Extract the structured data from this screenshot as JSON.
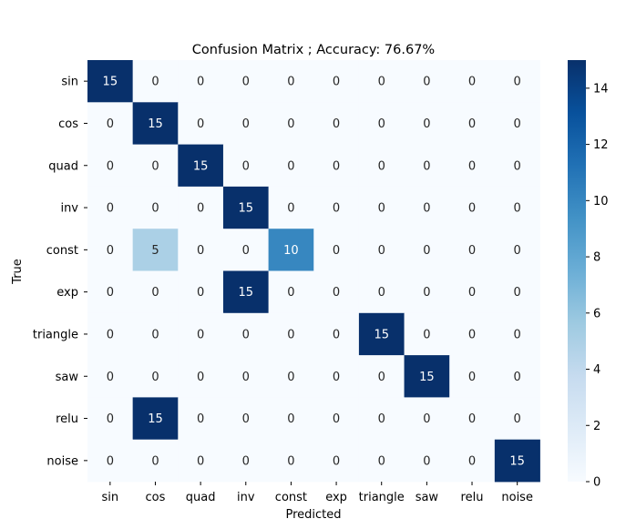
{
  "chart_data": {
    "type": "heatmap",
    "title": "Confusion Matrix ; Accuracy: 76.67%",
    "xlabel": "Predicted",
    "ylabel": "True",
    "x_categories": [
      "sin",
      "cos",
      "quad",
      "inv",
      "const",
      "exp",
      "triangle",
      "saw",
      "relu",
      "noise"
    ],
    "y_categories": [
      "sin",
      "cos",
      "quad",
      "inv",
      "const",
      "exp",
      "triangle",
      "saw",
      "relu",
      "noise"
    ],
    "values": [
      [
        15,
        0,
        0,
        0,
        0,
        0,
        0,
        0,
        0,
        0
      ],
      [
        0,
        15,
        0,
        0,
        0,
        0,
        0,
        0,
        0,
        0
      ],
      [
        0,
        0,
        15,
        0,
        0,
        0,
        0,
        0,
        0,
        0
      ],
      [
        0,
        0,
        0,
        15,
        0,
        0,
        0,
        0,
        0,
        0
      ],
      [
        0,
        5,
        0,
        0,
        10,
        0,
        0,
        0,
        0,
        0
      ],
      [
        0,
        0,
        0,
        15,
        0,
        0,
        0,
        0,
        0,
        0
      ],
      [
        0,
        0,
        0,
        0,
        0,
        0,
        15,
        0,
        0,
        0
      ],
      [
        0,
        0,
        0,
        0,
        0,
        0,
        0,
        15,
        0,
        0
      ],
      [
        0,
        15,
        0,
        0,
        0,
        0,
        0,
        0,
        0,
        0
      ],
      [
        0,
        0,
        0,
        0,
        0,
        0,
        0,
        0,
        0,
        15
      ]
    ],
    "colorscale": "Blues",
    "colorbar": {
      "range": [
        0,
        15
      ],
      "ticks": [
        0,
        2,
        4,
        6,
        8,
        10,
        12,
        14
      ]
    },
    "grid": false
  }
}
